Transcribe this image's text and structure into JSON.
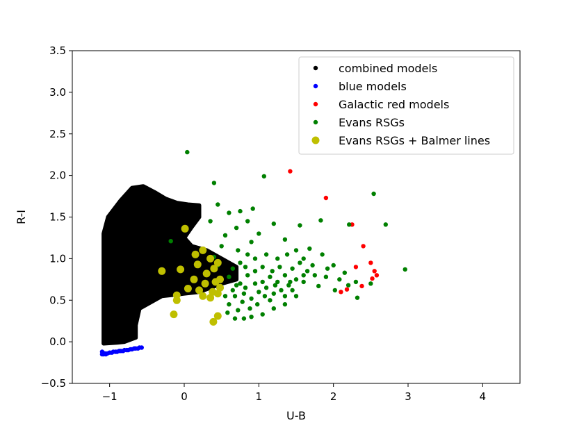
{
  "chart_data": {
    "type": "scatter",
    "title": "",
    "xlabel": "U-B",
    "ylabel": "R-I",
    "xlim": [
      -1.5,
      4.5
    ],
    "ylim": [
      -0.5,
      3.5
    ],
    "xticks": [
      -1,
      0,
      1,
      2,
      3,
      4
    ],
    "yticks": [
      -0.5,
      0.0,
      0.5,
      1.0,
      1.5,
      2.0,
      2.5,
      3.0,
      3.5
    ],
    "xtick_labels": [
      "−1",
      "0",
      "1",
      "2",
      "3",
      "4"
    ],
    "ytick_labels": [
      "−0.5",
      "0.0",
      "0.5",
      "1.0",
      "1.5",
      "2.0",
      "2.5",
      "3.0",
      "3.5"
    ],
    "grid": false,
    "legend_position": "top-right",
    "series": [
      {
        "name": "combined models",
        "color": "#000000",
        "marker_size": "small",
        "region_polygon": [
          [
            -1.08,
            -0.02
          ],
          [
            -1.08,
            1.3
          ],
          [
            -1.02,
            1.5
          ],
          [
            -0.85,
            1.7
          ],
          [
            -0.7,
            1.85
          ],
          [
            -0.55,
            1.87
          ],
          [
            -0.4,
            1.8
          ],
          [
            -0.25,
            1.72
          ],
          [
            -0.1,
            1.67
          ],
          [
            0.05,
            1.65
          ],
          [
            0.2,
            1.64
          ],
          [
            0.2,
            1.5
          ],
          [
            0.1,
            1.38
          ],
          [
            0.0,
            1.25
          ],
          [
            0.1,
            1.15
          ],
          [
            0.3,
            1.1
          ],
          [
            0.5,
            1.0
          ],
          [
            0.7,
            0.9
          ],
          [
            0.7,
            0.75
          ],
          [
            0.5,
            0.7
          ],
          [
            0.35,
            0.65
          ],
          [
            0.2,
            0.6
          ],
          [
            0.0,
            0.58
          ],
          [
            -0.3,
            0.55
          ],
          [
            -0.6,
            0.4
          ],
          [
            -0.65,
            0.2
          ],
          [
            -0.65,
            0.05
          ],
          [
            -0.8,
            0.0
          ],
          [
            -0.9,
            -0.01
          ]
        ]
      },
      {
        "name": "blue models",
        "color": "#0000ff",
        "marker_size": "small",
        "points": [
          [
            -1.1,
            -0.15
          ],
          [
            -1.08,
            -0.15
          ],
          [
            -1.06,
            -0.14
          ],
          [
            -1.05,
            -0.15
          ],
          [
            -1.03,
            -0.14
          ],
          [
            -1.0,
            -0.13
          ],
          [
            -0.97,
            -0.13
          ],
          [
            -0.95,
            -0.12
          ],
          [
            -0.92,
            -0.12
          ],
          [
            -0.9,
            -0.12
          ],
          [
            -0.87,
            -0.11
          ],
          [
            -0.85,
            -0.11
          ],
          [
            -0.82,
            -0.11
          ],
          [
            -0.8,
            -0.1
          ],
          [
            -0.77,
            -0.1
          ],
          [
            -0.75,
            -0.1
          ],
          [
            -0.72,
            -0.09
          ],
          [
            -0.7,
            -0.09
          ],
          [
            -0.67,
            -0.08
          ],
          [
            -0.65,
            -0.08
          ],
          [
            -0.62,
            -0.08
          ],
          [
            -0.6,
            -0.07
          ],
          [
            -0.57,
            -0.07
          ],
          [
            -1.1,
            -0.12
          ],
          [
            -1.09,
            -0.13
          ]
        ]
      },
      {
        "name": "Galactic red models",
        "color": "#ff0000",
        "marker_size": "small",
        "points": [
          [
            1.42,
            2.05
          ],
          [
            1.9,
            1.73
          ],
          [
            2.25,
            1.41
          ],
          [
            2.4,
            1.15
          ],
          [
            2.5,
            0.95
          ],
          [
            2.55,
            0.85
          ],
          [
            2.58,
            0.8
          ],
          [
            2.52,
            0.76
          ],
          [
            2.3,
            0.9
          ],
          [
            2.38,
            0.67
          ],
          [
            2.18,
            0.63
          ],
          [
            2.1,
            0.6
          ]
        ]
      },
      {
        "name": "Evans RSGs",
        "color": "#008000",
        "marker_size": "small",
        "points": [
          [
            0.04,
            2.28
          ],
          [
            0.4,
            1.91
          ],
          [
            1.07,
            1.99
          ],
          [
            2.54,
            1.78
          ],
          [
            2.96,
            0.87
          ],
          [
            2.7,
            1.41
          ],
          [
            2.21,
            1.41
          ],
          [
            1.83,
            1.46
          ],
          [
            1.55,
            1.4
          ],
          [
            0.45,
            1.65
          ],
          [
            0.6,
            1.55
          ],
          [
            0.75,
            1.57
          ],
          [
            0.92,
            1.6
          ],
          [
            0.85,
            1.45
          ],
          [
            1.2,
            1.42
          ],
          [
            1.0,
            1.3
          ],
          [
            0.7,
            1.37
          ],
          [
            0.55,
            1.28
          ],
          [
            0.35,
            1.45
          ],
          [
            0.9,
            1.2
          ],
          [
            1.35,
            1.23
          ],
          [
            1.5,
            1.1
          ],
          [
            1.68,
            1.12
          ],
          [
            1.85,
            1.05
          ],
          [
            2.0,
            0.92
          ],
          [
            2.15,
            0.83
          ],
          [
            2.3,
            0.72
          ],
          [
            2.5,
            0.7
          ],
          [
            2.32,
            0.53
          ],
          [
            2.02,
            0.62
          ],
          [
            1.8,
            0.67
          ],
          [
            1.6,
            0.72
          ],
          [
            1.5,
            0.55
          ],
          [
            1.35,
            0.45
          ],
          [
            1.2,
            0.4
          ],
          [
            1.05,
            0.33
          ],
          [
            0.9,
            0.3
          ],
          [
            0.8,
            0.28
          ],
          [
            0.72,
            0.38
          ],
          [
            0.6,
            0.45
          ],
          [
            0.55,
            0.55
          ],
          [
            0.65,
            0.62
          ],
          [
            0.75,
            0.7
          ],
          [
            0.85,
            0.8
          ],
          [
            0.95,
            0.85
          ],
          [
            1.05,
            0.9
          ],
          [
            1.15,
            0.78
          ],
          [
            1.25,
            0.72
          ],
          [
            1.35,
            0.8
          ],
          [
            1.45,
            0.88
          ],
          [
            1.55,
            0.95
          ],
          [
            1.65,
            0.85
          ],
          [
            1.75,
            0.8
          ],
          [
            1.9,
            0.78
          ],
          [
            1.25,
            1.0
          ],
          [
            1.1,
            1.05
          ],
          [
            0.95,
            1.0
          ],
          [
            0.85,
            1.05
          ],
          [
            0.75,
            0.95
          ],
          [
            0.65,
            0.88
          ],
          [
            0.6,
            0.78
          ],
          [
            0.7,
            0.68
          ],
          [
            0.8,
            0.58
          ],
          [
            0.9,
            0.52
          ],
          [
            1.0,
            0.6
          ],
          [
            1.1,
            0.65
          ],
          [
            1.2,
            0.58
          ],
          [
            1.3,
            0.62
          ],
          [
            1.4,
            0.68
          ],
          [
            1.5,
            0.75
          ],
          [
            1.6,
            0.8
          ],
          [
            1.45,
            0.62
          ],
          [
            1.35,
            0.55
          ],
          [
            1.15,
            0.5
          ],
          [
            0.98,
            0.45
          ],
          [
            0.88,
            0.4
          ],
          [
            0.78,
            0.48
          ],
          [
            0.68,
            0.55
          ],
          [
            1.05,
            0.72
          ],
          [
            0.95,
            0.7
          ],
          [
            1.18,
            0.85
          ],
          [
            1.28,
            0.9
          ],
          [
            0.82,
            0.9
          ],
          [
            0.72,
            1.1
          ],
          [
            1.38,
            1.05
          ],
          [
            1.6,
            1.0
          ],
          [
            1.72,
            0.92
          ],
          [
            1.92,
            0.88
          ],
          [
            2.08,
            0.75
          ],
          [
            2.2,
            0.68
          ],
          [
            0.5,
            1.15
          ],
          [
            0.45,
            0.92
          ],
          [
            0.4,
            1.02
          ],
          [
            -0.18,
            1.21
          ],
          [
            0.58,
            0.35
          ],
          [
            0.68,
            0.28
          ],
          [
            0.82,
            0.65
          ],
          [
            1.08,
            0.55
          ],
          [
            1.22,
            0.68
          ],
          [
            1.42,
            0.72
          ]
        ]
      },
      {
        "name": "Evans RSGs + Balmer lines",
        "color": "#bfbf00",
        "marker_size": "large",
        "points": [
          [
            0.01,
            1.36
          ],
          [
            -0.3,
            0.85
          ],
          [
            -0.05,
            0.87
          ],
          [
            0.15,
            1.05
          ],
          [
            0.25,
            1.1
          ],
          [
            0.35,
            1.0
          ],
          [
            0.45,
            0.95
          ],
          [
            0.4,
            0.88
          ],
          [
            0.3,
            0.82
          ],
          [
            0.13,
            0.75
          ],
          [
            0.28,
            0.7
          ],
          [
            0.42,
            0.72
          ],
          [
            0.48,
            0.65
          ],
          [
            0.38,
            0.6
          ],
          [
            0.2,
            0.62
          ],
          [
            0.05,
            0.64
          ],
          [
            -0.1,
            0.56
          ],
          [
            -0.1,
            0.5
          ],
          [
            0.25,
            0.55
          ],
          [
            0.35,
            0.53
          ],
          [
            0.45,
            0.58
          ],
          [
            0.48,
            0.75
          ],
          [
            -0.14,
            0.33
          ],
          [
            0.45,
            0.31
          ],
          [
            0.39,
            0.24
          ],
          [
            0.18,
            0.93
          ]
        ]
      }
    ]
  }
}
